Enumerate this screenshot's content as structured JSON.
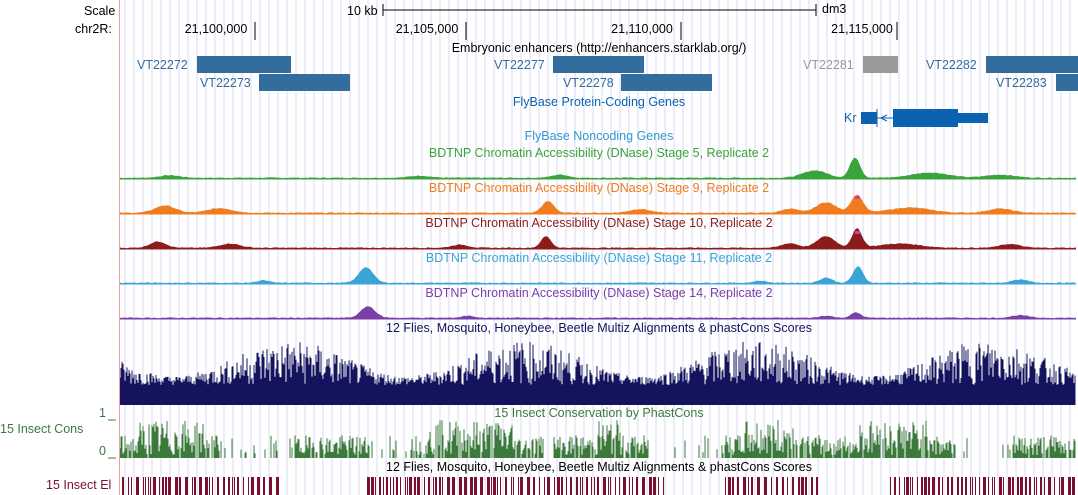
{
  "colors": {
    "enhancer": "#336d9e",
    "enhancer_gray": "#999999",
    "coding": "#0b62b0",
    "noncoding": "#3296d2",
    "stage5": "#3ba33b",
    "stage9": "#f07c1e",
    "stage10": "#8c1c1c",
    "stage11": "#3aa4d6",
    "stage14": "#7a3fa8",
    "multiz": "#14145e",
    "phastcons": "#3c7a3c",
    "elements": "#7a1030",
    "highlight": "#d43aa8",
    "grid": "#d8d8f4"
  },
  "ruler": {
    "scale_label": "Scale",
    "chrom_label": "chr2R:",
    "scale_bar_text": "10 kb",
    "assembly": "dm3",
    "positions": [
      "21,100,000",
      "21,105,000",
      "21,110,000",
      "21,115,000"
    ]
  },
  "tracks": {
    "enhancers": {
      "title": "Embryonic enhancers (http://enhancers.starklab.org/)",
      "items": [
        "VT22272",
        "VT22273",
        "VT22277",
        "VT22278",
        "VT22281",
        "VT22282",
        "VT22283"
      ]
    },
    "coding_genes": {
      "title": "FlyBase Protein-Coding Genes",
      "gene": "Kr"
    },
    "noncoding_genes": {
      "title": "FlyBase Noncoding Genes"
    },
    "dnase": [
      {
        "title": "BDTNP Chromatin Accessibility (DNase) Stage 5, Replicate 2",
        "color_key": "stage5"
      },
      {
        "title": "BDTNP Chromatin Accessibility (DNase) Stage 9, Replicate 2",
        "color_key": "stage9"
      },
      {
        "title": "BDTNP Chromatin Accessibility (DNase) Stage 10, Replicate 2",
        "color_key": "stage10"
      },
      {
        "title": "BDTNP Chromatin Accessibility (DNase) Stage 11, Replicate 2",
        "color_key": "stage11"
      },
      {
        "title": "BDTNP Chromatin Accessibility (DNase) Stage 14, Replicate 2",
        "color_key": "stage14"
      }
    ],
    "multiz": {
      "title": "12 Flies, Mosquito, Honeybee, Beetle Multiz Alignments & phastCons Scores"
    },
    "phastcons": {
      "title": "15 Insect Conservation by PhastCons",
      "left_label": "15 Insect Cons",
      "scale_max": "1",
      "scale_min": "0"
    },
    "elements": {
      "title": "12 Flies, Mosquito, Honeybee, Beetle Multiz Alignments & phastCons Scores",
      "left_label": "15 Insect El"
    }
  }
}
